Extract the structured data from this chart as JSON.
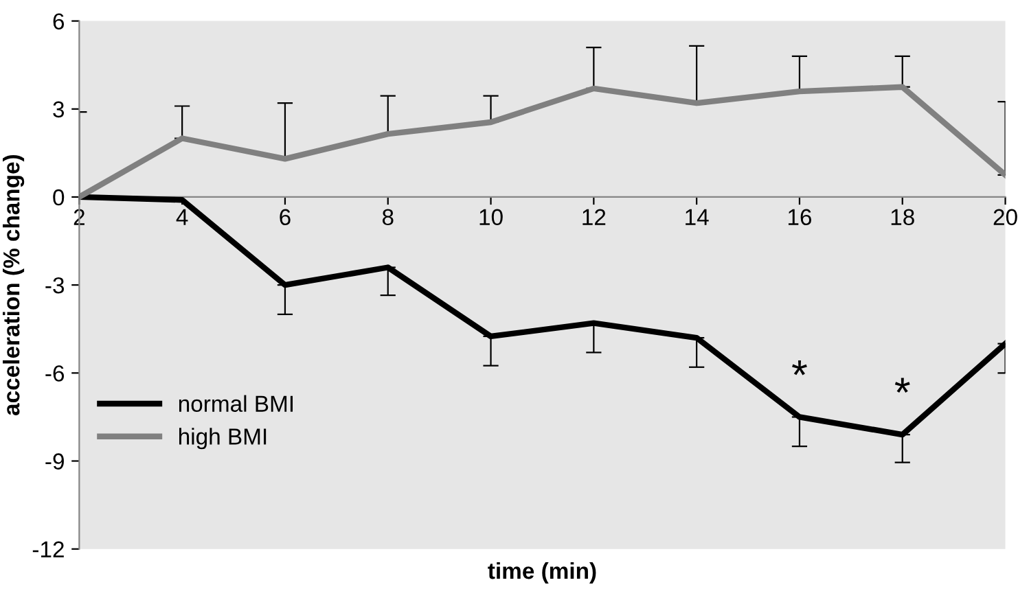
{
  "chart_data": {
    "type": "line",
    "xlabel": "time (min)",
    "ylabel": "acceleration (% change)",
    "x": [
      2,
      4,
      6,
      8,
      10,
      12,
      14,
      16,
      18,
      20
    ],
    "series": [
      {
        "name": "normal BMI",
        "color": "#000000",
        "values": [
          0,
          -0.1,
          -3.0,
          -2.4,
          -4.75,
          -4.3,
          -4.8,
          -7.5,
          -8.1,
          -5.0
        ],
        "errors": [
          null,
          null,
          [
            -4.0,
            -3.0
          ],
          [
            -3.35,
            -2.4
          ],
          [
            -5.75,
            -4.75
          ],
          [
            -5.3,
            -4.3
          ],
          [
            -5.8,
            -4.8
          ],
          [
            -8.5,
            -7.5
          ],
          [
            -9.05,
            -8.1
          ],
          [
            -6.0,
            -5.0
          ]
        ]
      },
      {
        "name": "high BMI",
        "color": "#808080",
        "values": [
          0,
          2.0,
          1.3,
          2.15,
          2.55,
          3.7,
          3.2,
          3.6,
          3.75,
          0.75
        ],
        "errors": [
          [
            0,
            2.9
          ],
          [
            2.0,
            3.1
          ],
          [
            1.3,
            3.2
          ],
          [
            2.15,
            3.45
          ],
          [
            2.55,
            3.45
          ],
          [
            3.7,
            5.1
          ],
          [
            3.2,
            5.15
          ],
          [
            3.6,
            4.8
          ],
          [
            3.75,
            4.8
          ],
          [
            0.75,
            3.25
          ]
        ]
      }
    ],
    "annotations": [
      {
        "text": "*",
        "x": 16,
        "y": -7.5
      },
      {
        "text": "*",
        "x": 18,
        "y": -8.1
      }
    ],
    "xlim": [
      2,
      20
    ],
    "ylim": [
      -12,
      6
    ],
    "xticks": [
      2,
      4,
      6,
      8,
      10,
      12,
      14,
      16,
      18,
      20
    ],
    "yticks": [
      -12,
      -9,
      -6,
      -3,
      0,
      3,
      6
    ],
    "legend": "bottom left",
    "grid": false,
    "marker": "none",
    "line_style": "solid"
  }
}
